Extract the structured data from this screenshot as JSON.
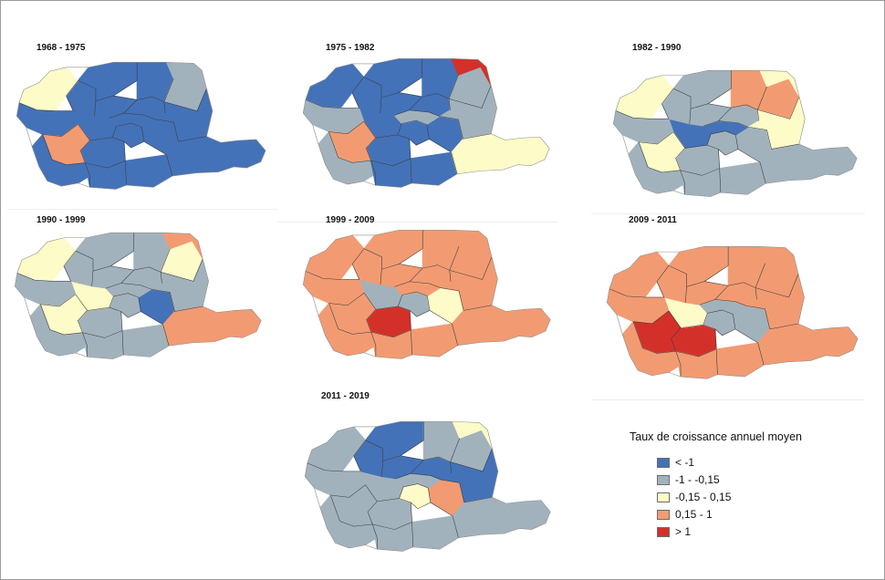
{
  "colors": {
    "c1": "#4472b8",
    "c2": "#a2b2bc",
    "c3": "#fdfbc7",
    "c4": "#f29b72",
    "c5": "#d4302a",
    "border": "#3d3d3d"
  },
  "panels": [
    {
      "period": "1968 - 1975",
      "fills": [
        "c1",
        "c1",
        "c1",
        "c1",
        "c1",
        "c1",
        "c1",
        "c1",
        "c1",
        "c1",
        "c2",
        "c3",
        "c1",
        "c4",
        "c1",
        "c1",
        "c1",
        "c2",
        "c1",
        "c1"
      ]
    },
    {
      "period": "1975 - 1982",
      "fills": [
        "c1",
        "c1",
        "c1",
        "c1",
        "c2",
        "c1",
        "c1",
        "c1",
        "c1",
        "c1",
        "c2",
        "c1",
        "c2",
        "c4",
        "c2",
        "c1",
        "c1",
        "c5",
        "c2",
        "c3"
      ]
    },
    {
      "period": "1982 - 1990",
      "fills": [
        "c2",
        "c2",
        "c2",
        "c1",
        "c1",
        "c2",
        "c2",
        "c2",
        "c2",
        "c4",
        "c4",
        "c3",
        "c2",
        "c3",
        "c2",
        "c2",
        "c2",
        "c3",
        "c3",
        "c2"
      ]
    },
    {
      "period": "1990 - 1999",
      "fills": [
        "c2",
        "c2",
        "c1",
        "c3",
        "c2",
        "c2",
        "c2",
        "c2",
        "c2",
        "c2",
        "c3",
        "c3",
        "c2",
        "c3",
        "c2",
        "c2",
        "c2",
        "c4",
        "c2",
        "c4"
      ]
    },
    {
      "period": "1999 - 2009",
      "fills": [
        "c5",
        "c2",
        "c3",
        "c2",
        "c4",
        "c4",
        "c4",
        "c4",
        "c4",
        "c4",
        "c4",
        "c4",
        "c4",
        "c4",
        "c4",
        "c4",
        "c4",
        "c4",
        "c4",
        "c4"
      ]
    },
    {
      "period": "2009  - 2011",
      "fills": [
        "c5",
        "c2",
        "c2",
        "c3",
        "c2",
        "c4",
        "c4",
        "c4",
        "c4",
        "c4",
        "c4",
        "c4",
        "c4",
        "c5",
        "c4",
        "c4",
        "c4",
        "c4",
        "c4",
        "c4"
      ]
    },
    {
      "period": "2011 - 2019",
      "fills": [
        "c2",
        "c3",
        "c4",
        "c2",
        "c2",
        "c1",
        "c1",
        "c1",
        "c1",
        "c2",
        "c2",
        "c2",
        "c2",
        "c2",
        "c2",
        "c2",
        "c2",
        "c3",
        "c1",
        "c2"
      ]
    }
  ],
  "legend": {
    "title": "Taux de croissance annuel moyen",
    "items": [
      {
        "label": "< -1",
        "color": "#4472b8"
      },
      {
        "label": "-1 - -0,15",
        "color": "#a2b2bc"
      },
      {
        "label": "-0,15 - 0,15",
        "color": "#fdfbc7"
      },
      {
        "label": "0,15 - 1",
        "color": "#f29b72"
      },
      {
        "label": "> 1",
        "color": "#d4302a"
      }
    ]
  }
}
